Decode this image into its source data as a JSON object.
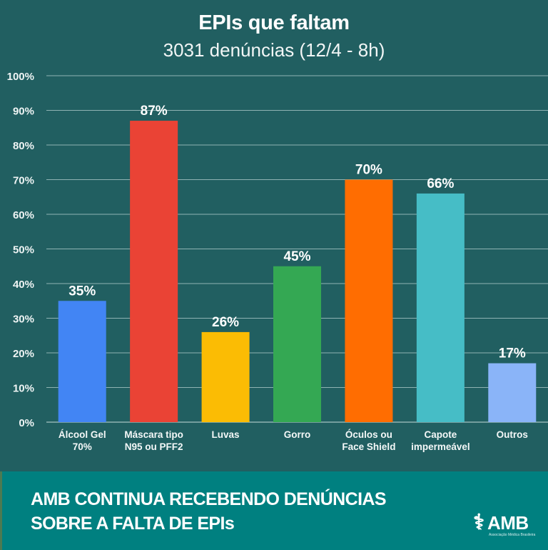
{
  "chart_data": {
    "type": "bar",
    "title": "EPIs que faltam",
    "subtitle": "3031 denúncias (12/4 - 8h)",
    "xlabel": "",
    "ylabel": "",
    "ylim": [
      0,
      100
    ],
    "yticks": [
      0,
      10,
      20,
      30,
      40,
      50,
      60,
      70,
      80,
      90,
      100
    ],
    "ytick_labels": [
      "0%",
      "10%",
      "20%",
      "30%",
      "40%",
      "50%",
      "60%",
      "70%",
      "80%",
      "90%",
      "100%"
    ],
    "grid": true,
    "legend": "none",
    "categories": [
      [
        "Álcool Gel",
        "70%"
      ],
      [
        "Máscara tipo",
        "N95 ou PFF2"
      ],
      [
        "Luvas"
      ],
      [
        "Gorro"
      ],
      [
        "Óculos ou",
        "Face Shield"
      ],
      [
        "Capote",
        "impermeável"
      ],
      [
        "Outros"
      ]
    ],
    "values": [
      35,
      87,
      26,
      45,
      70,
      66,
      17
    ],
    "data_labels": [
      "35%",
      "87%",
      "26%",
      "45%",
      "70%",
      "66%",
      "17%"
    ],
    "colors": [
      "#4285f4",
      "#ea4335",
      "#fbbc04",
      "#34a853",
      "#ff6d01",
      "#46bdc6",
      "#8ab4f8"
    ]
  },
  "theme": {
    "background": "#215f61",
    "gridline": "#8fb3b3",
    "text": "#ffffff",
    "banner": "#008080"
  },
  "banner": {
    "line1": "AMB CONTINUA RECEBENDO DENÚNCIAS",
    "line2": "SOBRE A FALTA DE EPIs",
    "logo_text": "AMB",
    "logo_subtext": "Associação Médica Brasileira",
    "logo_icon": "caduceus-icon"
  }
}
